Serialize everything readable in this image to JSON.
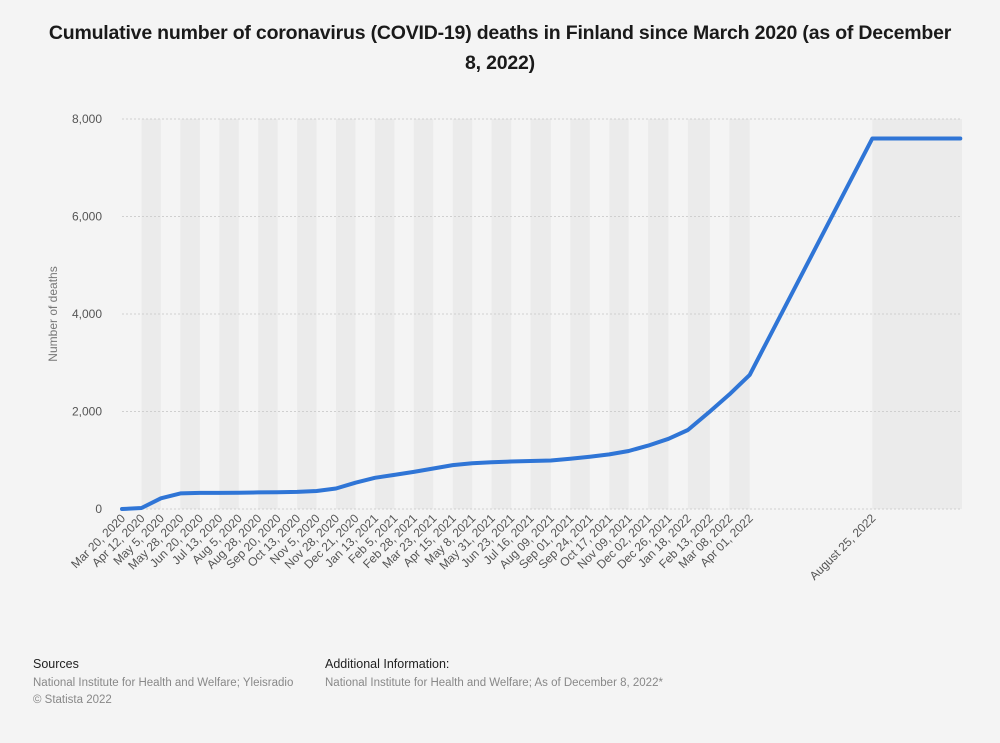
{
  "title": "Cumulative number of coronavirus (COVID-19) deaths in Finland since March 2020 (as of December 8, 2022)",
  "footer": {
    "sources_heading": "Sources",
    "sources_text": "National Institute for Health and Welfare; Yleisradio",
    "copyright": "© Statista 2022",
    "additional_heading": "Additional Information:",
    "additional_text": "National Institute for Health and Welfare; As of December 8, 2022*"
  },
  "colors": {
    "line": "#2f75d6",
    "band": "#ebebeb",
    "grid": "#cfcfcf"
  },
  "chart_data": {
    "type": "line",
    "title": "Cumulative number of coronavirus (COVID-19) deaths in Finland since March 2020 (as of December 8, 2022)",
    "xlabel": "",
    "ylabel": "Number of deaths",
    "ylim": [
      0,
      8000
    ],
    "yticks": [
      0,
      2000,
      4000,
      6000,
      8000
    ],
    "ytick_labels": [
      "0",
      "2,000",
      "4,000",
      "6,000",
      "8,000"
    ],
    "grid": true,
    "legend": "none",
    "categories": [
      "Mar 20, 2020",
      "Apr 12, 2020",
      "May 5, 2020",
      "May 28, 2020",
      "Jun 20, 2020",
      "Jul 13, 2020",
      "Aug 5, 2020",
      "Aug 28, 2020",
      "Sep 20, 2020",
      "Oct 13, 2020",
      "Nov 5, 2020",
      "Nov 28, 2020",
      "Dec 21, 2020",
      "Jan 13, 2021",
      "Feb 5, 2021",
      "Feb 28, 2021",
      "Mar 23, 2021",
      "Apr 15, 2021",
      "May 8, 2021",
      "May 31, 2021",
      "Jun 23, 2021",
      "Jul 16, 2021",
      "Aug 09, 2021",
      "Sep 01, 2021",
      "Sep 24, 2021",
      "Oct 17, 2021",
      "Nov 09, 2021",
      "Dec 02, 2021",
      "Dec 26, 2021",
      "Jan 18, 2022",
      "Feb 13, 2022",
      "Mar 08, 2022",
      "Apr 01, 2022",
      "August 25, 2022"
    ],
    "series": [
      {
        "values": [
          0,
          20,
          220,
          320,
          330,
          330,
          335,
          340,
          345,
          350,
          370,
          420,
          540,
          640,
          700,
          760,
          830,
          900,
          940,
          960,
          975,
          985,
          995,
          1030,
          1070,
          1120,
          1190,
          1300,
          1440,
          1620,
          2000,
          2350,
          2750,
          7600
        ]
      }
    ]
  }
}
